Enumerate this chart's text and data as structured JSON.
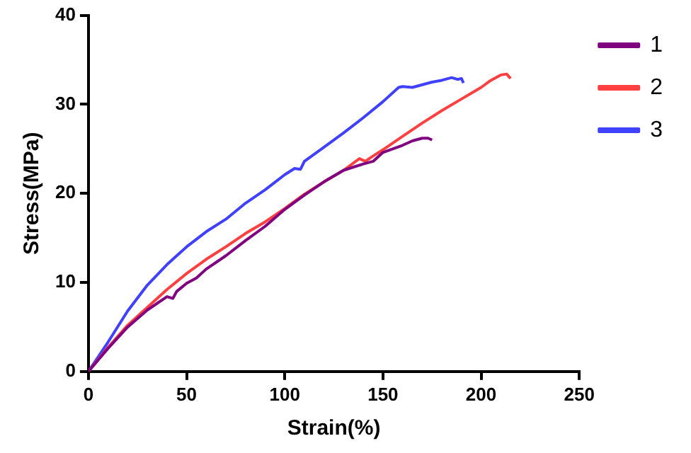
{
  "chart_data": {
    "type": "line",
    "xlabel": "Strain(%)",
    "ylabel": "Stress(MPa)",
    "xlim": [
      0,
      250
    ],
    "xticks": [
      0,
      50,
      100,
      150,
      200,
      250
    ],
    "ylim": [
      0,
      40
    ],
    "yticks": [
      0,
      10,
      20,
      30,
      40
    ],
    "grid": false,
    "legend": "top right",
    "marker": "none",
    "line_style": "solid",
    "series": [
      {
        "name": "1",
        "color": "#800080",
        "x": [
          0,
          10,
          20,
          30,
          40,
          43,
          45,
          50,
          55,
          60,
          70,
          80,
          90,
          100,
          110,
          120,
          130,
          140,
          145,
          150,
          160,
          165,
          170,
          173,
          175
        ],
        "values": [
          0,
          2.6,
          5,
          6.9,
          8.4,
          8.2,
          9,
          9.9,
          10.5,
          11.5,
          13,
          14.7,
          16.3,
          18.2,
          19.8,
          21.3,
          22.6,
          23.3,
          23.6,
          24.6,
          25.4,
          25.9,
          26.2,
          26.2,
          26
        ]
      },
      {
        "name": "2",
        "color": "#ff4040",
        "x": [
          0,
          10,
          20,
          30,
          40,
          50,
          60,
          70,
          80,
          90,
          100,
          110,
          120,
          130,
          138,
          141,
          145,
          150,
          160,
          170,
          180,
          190,
          200,
          205,
          210,
          213,
          215
        ],
        "values": [
          0,
          2.7,
          5.2,
          7.2,
          9.2,
          11,
          12.6,
          14,
          15.5,
          16.8,
          18.3,
          19.9,
          21.3,
          22.6,
          23.9,
          23.6,
          24.2,
          24.9,
          26.4,
          27.9,
          29.3,
          30.6,
          31.9,
          32.7,
          33.3,
          33.4,
          32.9
        ]
      },
      {
        "name": "3",
        "color": "#4040ff",
        "x": [
          0,
          10,
          20,
          30,
          40,
          50,
          60,
          70,
          80,
          90,
          100,
          105,
          108,
          110,
          120,
          130,
          140,
          150,
          158,
          160,
          165,
          170,
          175,
          180,
          185,
          188,
          190,
          191
        ],
        "values": [
          0,
          3.3,
          6.8,
          9.7,
          12,
          14,
          15.7,
          17.1,
          18.9,
          20.4,
          22.1,
          22.8,
          22.7,
          23.6,
          25.2,
          26.8,
          28.5,
          30.3,
          31.9,
          32,
          31.9,
          32.2,
          32.5,
          32.7,
          33,
          32.8,
          32.9,
          32.4
        ]
      }
    ]
  }
}
